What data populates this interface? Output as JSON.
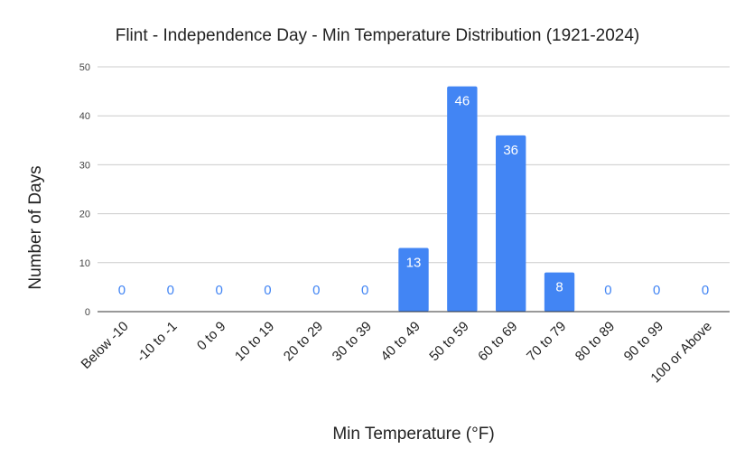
{
  "chart_data": {
    "type": "bar",
    "title": "Flint - Independence Day - Min Temperature Distribution (1921-2024)",
    "xlabel": "Min Temperature (°F)",
    "ylabel": "Number of Days",
    "categories": [
      "Below -10",
      "-10 to -1",
      "0 to 9",
      "10 to 19",
      "20 to 29",
      "30 to 39",
      "40 to 49",
      "50 to 59",
      "60 to 69",
      "70 to 79",
      "80 to 89",
      "90 to 99",
      "100 or Above"
    ],
    "values": [
      0,
      0,
      0,
      0,
      0,
      0,
      13,
      46,
      36,
      8,
      0,
      0,
      0
    ],
    "data_labels": [
      "0",
      "0",
      "0",
      "0",
      "0",
      "0",
      "13",
      "46",
      "36",
      "8",
      "0",
      "0",
      "0"
    ],
    "ylim": [
      0,
      50
    ],
    "yticks": [
      "0",
      "10",
      "20",
      "30",
      "40",
      "50"
    ],
    "grid": true,
    "legend": "none",
    "colors": {
      "bar": "#4285f4",
      "label_inside": "#ffffff",
      "label_zero": "#4285f4",
      "grid": "#cccccc",
      "axis": "#333333"
    }
  }
}
